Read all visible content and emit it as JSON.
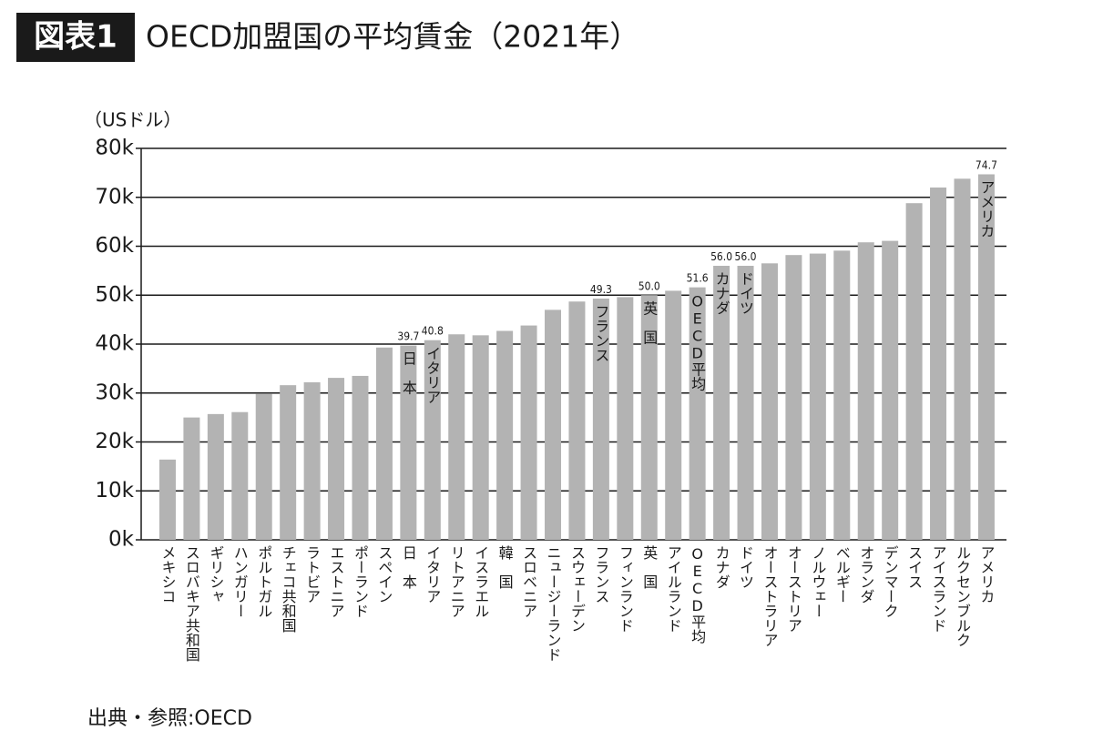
{
  "chart_data": {
    "type": "bar",
    "badge": "図表1",
    "title": "OECD加盟国の平均賃金（2021年）",
    "y_label": "（USドル）",
    "source": "出典・参照:OECD",
    "categories": [
      "メキシコ",
      "スロバキア共和国",
      "ギリシャ",
      "ハンガリー",
      "ポルトガル",
      "チェコ共和国",
      "ラトビア",
      "エストニア",
      "ポーランド",
      "スペイン",
      "日　本",
      "イタリア",
      "リトアニア",
      "イスラエル",
      "韓　国",
      "スロベニア",
      "ニュージーランド",
      "スウェーデン",
      "フランス",
      "フィンランド",
      "英　国",
      "アイルランド",
      "OECD平均",
      "カナダ",
      "ドイツ",
      "オーストラリア",
      "オーストリア",
      "ノルウェー",
      "ベルギー",
      "オランダ",
      "デンマーク",
      "スイス",
      "アイスランド",
      "ルクセンブルク",
      "アメリカ"
    ],
    "values": [
      16.4,
      25.0,
      25.7,
      26.1,
      29.8,
      31.6,
      32.2,
      33.1,
      33.5,
      39.3,
      39.7,
      40.8,
      42.0,
      41.8,
      42.7,
      43.8,
      47.0,
      48.7,
      49.3,
      49.6,
      50.0,
      50.9,
      51.6,
      56.0,
      56.0,
      56.5,
      58.2,
      58.5,
      59.1,
      60.8,
      61.1,
      68.8,
      72.0,
      73.8,
      74.7
    ],
    "value_labels": [
      null,
      null,
      null,
      null,
      null,
      null,
      null,
      null,
      null,
      null,
      "39.7",
      "40.8",
      null,
      null,
      null,
      null,
      null,
      null,
      "49.3",
      null,
      "50.0",
      null,
      "51.6",
      "56.0",
      "56.0",
      null,
      null,
      null,
      null,
      null,
      null,
      null,
      null,
      null,
      "74.7"
    ],
    "color": "#b3b3b3",
    "ylim": [
      0,
      80
    ],
    "yticks": [
      {
        "value": 0,
        "label": "0k"
      },
      {
        "value": 10,
        "label": "10k"
      },
      {
        "value": 20,
        "label": "20k"
      },
      {
        "value": 30,
        "label": "30k"
      },
      {
        "value": 40,
        "label": "40k"
      },
      {
        "value": 50,
        "label": "50k"
      },
      {
        "value": 60,
        "label": "60k"
      },
      {
        "value": 70,
        "label": "70k"
      },
      {
        "value": 80,
        "label": "80k"
      }
    ],
    "grid": true
  }
}
